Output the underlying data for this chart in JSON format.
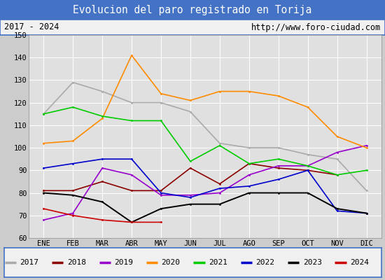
{
  "title": "Evolucion del paro registrado en Torija",
  "subtitle_left": "2017 - 2024",
  "subtitle_right": "http://www.foro-ciudad.com",
  "months": [
    "ENE",
    "FEB",
    "MAR",
    "ABR",
    "MAY",
    "JUN",
    "JUL",
    "AGO",
    "SEP",
    "OCT",
    "NOV",
    "DIC"
  ],
  "ylim": [
    60,
    150
  ],
  "yticks": [
    60,
    70,
    80,
    90,
    100,
    110,
    120,
    130,
    140,
    150
  ],
  "series": {
    "2017": {
      "values": [
        115,
        129,
        125,
        120,
        120,
        116,
        102,
        100,
        100,
        97,
        95,
        81
      ],
      "color": "#aaaaaa",
      "linewidth": 1.2
    },
    "2018": {
      "values": [
        81,
        81,
        85,
        81,
        81,
        91,
        84,
        93,
        91,
        90,
        88,
        null
      ],
      "color": "#8b0000",
      "linewidth": 1.2
    },
    "2019": {
      "values": [
        68,
        71,
        91,
        88,
        79,
        79,
        80,
        88,
        92,
        92,
        98,
        101
      ],
      "color": "#9900cc",
      "linewidth": 1.2
    },
    "2020": {
      "values": [
        102,
        103,
        113,
        141,
        124,
        121,
        125,
        125,
        123,
        118,
        105,
        100
      ],
      "color": "#ff8c00",
      "linewidth": 1.2
    },
    "2021": {
      "values": [
        115,
        118,
        114,
        112,
        112,
        94,
        101,
        93,
        95,
        92,
        88,
        90
      ],
      "color": "#00cc00",
      "linewidth": 1.2
    },
    "2022": {
      "values": [
        91,
        93,
        95,
        95,
        80,
        78,
        82,
        83,
        86,
        90,
        72,
        71
      ],
      "color": "#0000cc",
      "linewidth": 1.2
    },
    "2023": {
      "values": [
        80,
        79,
        76,
        67,
        73,
        75,
        75,
        80,
        80,
        80,
        73,
        71
      ],
      "color": "#000000",
      "linewidth": 1.4
    },
    "2024": {
      "values": [
        73,
        70,
        68,
        67,
        67,
        null,
        null,
        null,
        null,
        null,
        null,
        null
      ],
      "color": "#cc0000",
      "linewidth": 1.2
    }
  },
  "background_color": "#cccccc",
  "plot_bg_color": "#e0e0e0",
  "title_bg_color": "#4472c4",
  "title_color": "#ffffff",
  "grid_color": "#ffffff",
  "subtitle_bg": "#f0f0f0",
  "legend_bg": "#f0f0f0",
  "border_color": "#4472c4",
  "title_fontsize": 10.5,
  "tick_fontsize": 7.5,
  "subtitle_fontsize": 8.5,
  "legend_fontsize": 8
}
